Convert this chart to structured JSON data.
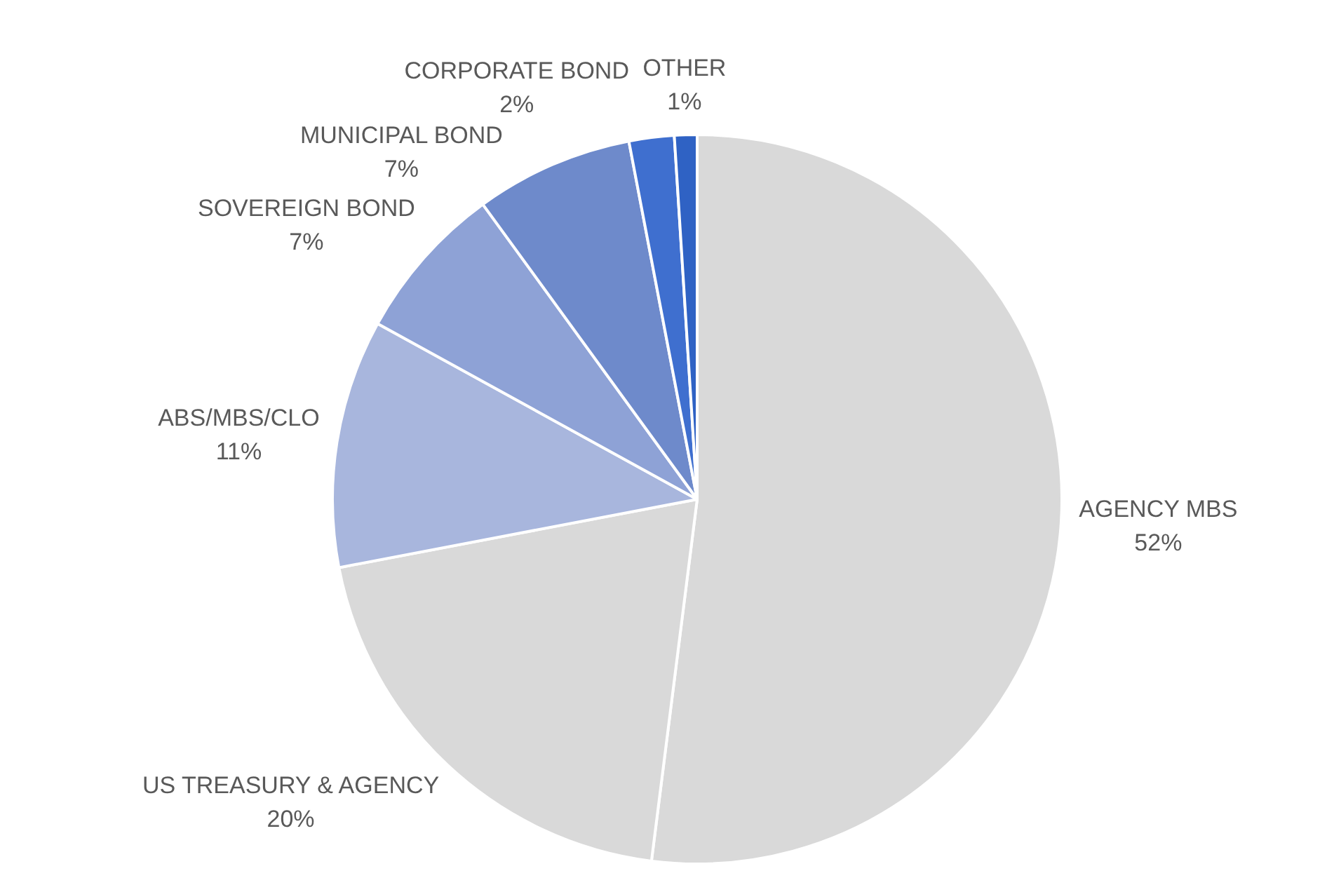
{
  "chart_data": {
    "type": "pie",
    "categories": [
      "AGENCY MBS",
      "US TREASURY & AGENCY",
      "ABS/MBS/CLO",
      "SOVEREIGN BOND",
      "MUNICIPAL BOND",
      "CORPORATE BOND",
      "OTHER"
    ],
    "values": [
      52,
      20,
      11,
      7,
      7,
      2,
      1
    ],
    "colors": [
      "#d9d9d9",
      "#d9d9d9",
      "#a8b6dd",
      "#8ea2d6",
      "#6e8acb",
      "#3f6fcf",
      "#2f62c4"
    ],
    "value_labels": [
      "52%",
      "20%",
      "11%",
      "7%",
      "7%",
      "2%",
      "1%"
    ],
    "legend": false
  }
}
